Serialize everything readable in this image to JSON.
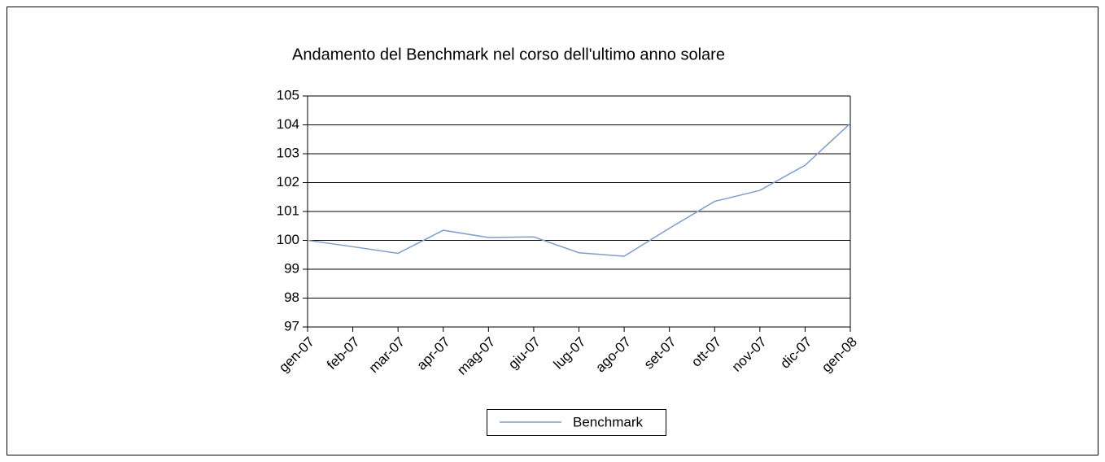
{
  "chart_data": {
    "type": "line",
    "title": "Andamento del Benchmark nel corso dell'ultimo anno solare",
    "categories": [
      "gen-07",
      "feb-07",
      "mar-07",
      "apr-07",
      "mag-07",
      "giu-07",
      "lug-07",
      "ago-07",
      "set-07",
      "ott-07",
      "nov-07",
      "dic-07",
      "gen-08"
    ],
    "series": [
      {
        "name": "Benchmark",
        "color": "#7f9ccb",
        "values": [
          100,
          99.78,
          99.55,
          100.35,
          100.1,
          100.12,
          99.57,
          99.45,
          100.42,
          101.35,
          101.73,
          102.6,
          104.05
        ]
      }
    ],
    "ylim": [
      97,
      105
    ],
    "yticks": [
      97,
      98,
      99,
      100,
      101,
      102,
      103,
      104,
      105
    ],
    "grid": true,
    "legend": "bottom"
  }
}
